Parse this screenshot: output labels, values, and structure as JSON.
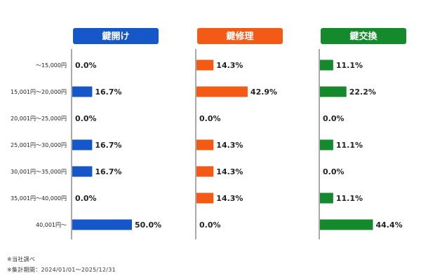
{
  "chart_data": {
    "type": "bar",
    "orientation": "horizontal",
    "categories": [
      "～15,000円",
      "15,001円～20,000円",
      "20,001円～25,000円",
      "25,001円～30,000円",
      "30,001円～35,000円",
      "35,001円～40,000円",
      "40,001円～"
    ],
    "xlim": [
      0,
      60
    ],
    "unit": "%",
    "grid": false,
    "series": [
      {
        "name": "鍵開け",
        "color": "#1556c9",
        "values": [
          0.0,
          16.7,
          0.0,
          16.7,
          16.7,
          0.0,
          50.0
        ],
        "labels": [
          "0.0%",
          "16.7%",
          "0.0%",
          "16.7%",
          "16.7%",
          "0.0%",
          "50.0%"
        ]
      },
      {
        "name": "鍵修理",
        "color": "#f25a15",
        "values": [
          14.3,
          42.9,
          0.0,
          14.3,
          14.3,
          14.3,
          0.0
        ],
        "labels": [
          "14.3%",
          "42.9%",
          "0.0%",
          "14.3%",
          "14.3%",
          "14.3%",
          "0.0%"
        ]
      },
      {
        "name": "鍵交換",
        "color": "#148a2d",
        "values": [
          11.1,
          22.2,
          0.0,
          11.1,
          0.0,
          11.1,
          44.4
        ],
        "labels": [
          "11.1%",
          "22.2%",
          "0.0%",
          "11.1%",
          "0.0%",
          "11.1%",
          "44.4%"
        ]
      }
    ]
  },
  "footnotes": {
    "source": "※当社調べ",
    "period": "※集計期間：2024/01/01～2025/12/31"
  }
}
